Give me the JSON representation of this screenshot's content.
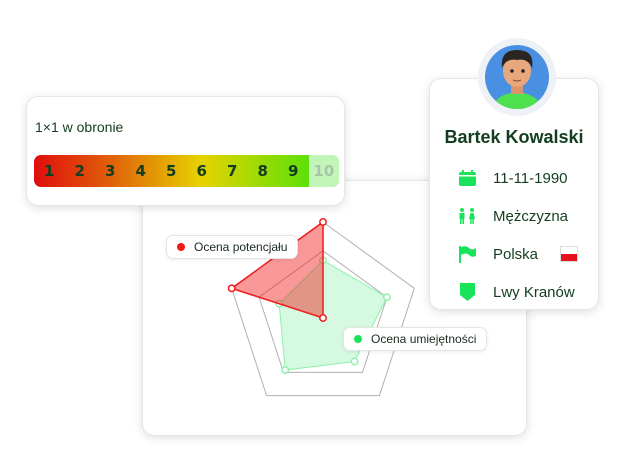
{
  "skill_scale": {
    "title": "1×1 w obronie",
    "levels": [
      "1",
      "2",
      "3",
      "4",
      "5",
      "6",
      "7",
      "8",
      "9",
      "10"
    ],
    "value": 9
  },
  "profile": {
    "name": "Bartek Kowalski",
    "birth_date": "11-11-1990",
    "gender": "Mężczyzna",
    "country": "Polska",
    "club": "Lwy Kranów",
    "icons": [
      "calendar-icon",
      "gender-icon",
      "flag-icon",
      "shield-icon",
      "poland-flag-icon"
    ]
  },
  "chart_data": {
    "type": "radar",
    "axes_count": 5,
    "range": [
      0,
      100
    ],
    "grid_levels": [
      70,
      100
    ],
    "series": [
      {
        "name": "Ocena potencjału",
        "color": "#f01a1a",
        "values": [
          100,
          0,
          0,
          0,
          100
        ]
      },
      {
        "name": "Ocena umiejętności",
        "color": "#19e35a",
        "values": [
          60,
          70,
          56,
          67,
          48
        ]
      }
    ]
  },
  "colors": {
    "primary_text": "#123d1e",
    "accent_green": "#19e35a",
    "accent_red": "#f01a1a"
  }
}
